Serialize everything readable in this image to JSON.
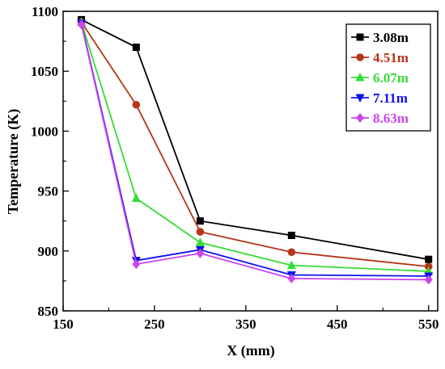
{
  "chart_data": {
    "type": "line",
    "xlabel": "X (mm)",
    "ylabel": "Temperature (K)",
    "xlim": [
      150,
      560
    ],
    "ylim": [
      850,
      1100
    ],
    "xticks": [
      150,
      250,
      350,
      450,
      550
    ],
    "yticks": [
      850,
      900,
      950,
      1000,
      1050,
      1100
    ],
    "x": [
      170,
      230,
      300,
      400,
      550
    ],
    "legend_position": "top-right",
    "grid": false,
    "series": [
      {
        "name": "3.08m",
        "color": "#000000",
        "marker": "square",
        "values": [
          1093,
          1070,
          925,
          913,
          893
        ]
      },
      {
        "name": "4.51m",
        "color": "#b5351a",
        "marker": "circle",
        "values": [
          1091,
          1022,
          916,
          899,
          887
        ]
      },
      {
        "name": "6.07m",
        "color": "#33dd33",
        "marker": "triangle-up",
        "values": [
          1091,
          944,
          907,
          888,
          883
        ]
      },
      {
        "name": "7.11m",
        "color": "#1111ee",
        "marker": "triangle-down",
        "values": [
          1090,
          892,
          901,
          880,
          879
        ]
      },
      {
        "name": "8.63m",
        "color": "#cc44ee",
        "marker": "diamond",
        "values": [
          1089,
          889,
          898,
          877,
          876
        ]
      }
    ]
  }
}
